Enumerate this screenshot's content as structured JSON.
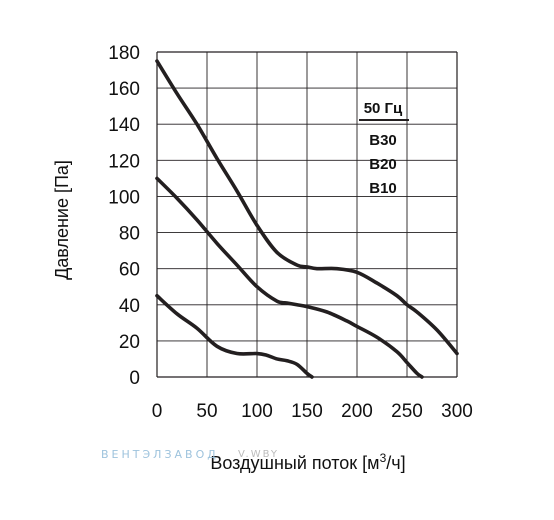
{
  "chart_data": {
    "type": "line",
    "xlabel": "Воздушный поток [м³/ч]",
    "xlabel_parts": {
      "main": "Воздушный поток [м",
      "sup": "3",
      "tail": "/ч]"
    },
    "ylabel": "Давление [Па]",
    "xlim": [
      0,
      300
    ],
    "ylim": [
      0,
      180
    ],
    "xticks": [
      0,
      50,
      100,
      150,
      200,
      250,
      300
    ],
    "yticks": [
      0,
      20,
      40,
      60,
      80,
      100,
      120,
      140,
      160,
      180
    ],
    "grid": true,
    "legend": {
      "header": "50 Гц",
      "items": [
        "B30",
        "B20",
        "B10"
      ],
      "placement": "top-right"
    },
    "series": [
      {
        "name": "B30",
        "x": [
          0,
          20,
          40,
          60,
          80,
          100,
          120,
          140,
          150,
          160,
          180,
          200,
          220,
          240,
          250,
          260,
          280,
          300
        ],
        "y": [
          175,
          157,
          140,
          121,
          103,
          84,
          69,
          62,
          61,
          60,
          60,
          58,
          52,
          45,
          40,
          36,
          26,
          13
        ]
      },
      {
        "name": "B20",
        "x": [
          0,
          20,
          40,
          60,
          80,
          100,
          120,
          130,
          140,
          150,
          170,
          190,
          200,
          220,
          240,
          250,
          260,
          265
        ],
        "y": [
          110,
          99,
          87,
          74,
          62,
          50,
          42,
          41,
          40,
          39,
          36,
          31,
          28,
          22,
          14,
          8,
          2,
          0
        ]
      },
      {
        "name": "B10",
        "x": [
          0,
          20,
          40,
          60,
          80,
          100,
          110,
          120,
          130,
          140,
          150,
          155
        ],
        "y": [
          45,
          35,
          27,
          17,
          13,
          13,
          12,
          10,
          9,
          7,
          2,
          0
        ]
      }
    ]
  },
  "watermark": {
    "text": "ВЕНТЭЛЗАВОД",
    "text2": "V.WBY"
  },
  "colors": {
    "line": "#231f20",
    "grid": "#231f20",
    "watermark": "#9ec3dd"
  }
}
